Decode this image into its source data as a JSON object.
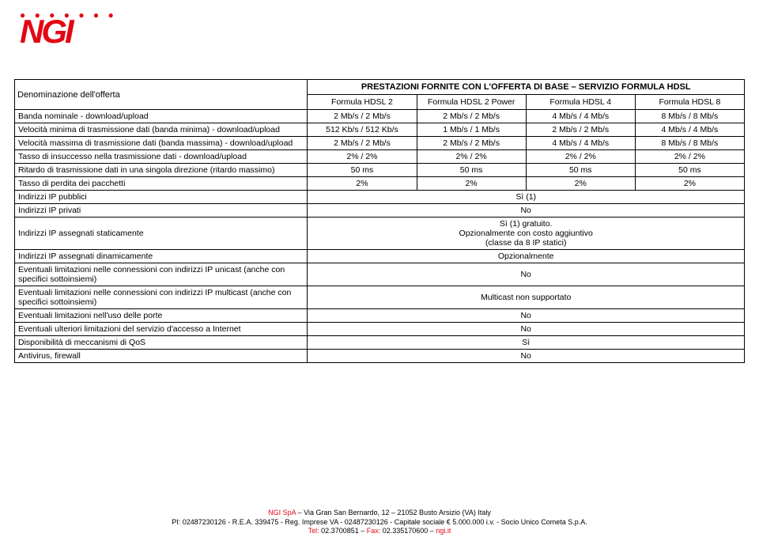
{
  "logo": {
    "dots": "● ● ● ● ● ● ●",
    "text": "NGI"
  },
  "table": {
    "title": "PRESTAZIONI FORNITE CON L'OFFERTA DI BASE – SERVIZIO FORMULA HDSL",
    "headers": [
      "Formula HDSL 2",
      "Formula HDSL 2 Power",
      "Formula HDSL 4",
      "Formula HDSL 8"
    ],
    "rows": [
      {
        "label": "Denominazione dell'offerta",
        "cells": [
          "Formula HDSL 2",
          "Formula HDSL 2 Power",
          "Formula HDSL 4",
          "Formula HDSL 8"
        ]
      },
      {
        "label": "Banda nominale - download/upload",
        "cells": [
          "2 Mb/s / 2 Mb/s",
          "2 Mb/s / 2 Mb/s",
          "4 Mb/s / 4 Mb/s",
          "8 Mb/s / 8 Mb/s"
        ]
      },
      {
        "label": "Velocità minima di trasmissione dati (banda minima) - download/upload",
        "cells": [
          "512 Kb/s / 512 Kb/s",
          "1 Mb/s / 1 Mb/s",
          "2 Mb/s / 2 Mb/s",
          "4 Mb/s / 4 Mb/s"
        ]
      },
      {
        "label": "Velocità massima di trasmissione dati (banda massima) - download/upload",
        "cells": [
          "2 Mb/s / 2 Mb/s",
          "2 Mb/s / 2 Mb/s",
          "4 Mb/s / 4 Mb/s",
          "8 Mb/s / 8 Mb/s"
        ]
      },
      {
        "label": "Tasso di insuccesso nella trasmissione dati - download/upload",
        "cells": [
          "2% / 2%",
          "2% / 2%",
          "2% / 2%",
          "2% / 2%"
        ]
      },
      {
        "label": "Ritardo di trasmissione dati in una singola direzione (ritardo massimo)",
        "cells": [
          "50 ms",
          "50 ms",
          "50 ms",
          "50 ms"
        ]
      },
      {
        "label": "Tasso di perdita dei pacchetti",
        "cells": [
          "2%",
          "2%",
          "2%",
          "2%"
        ]
      }
    ],
    "spanRows": [
      {
        "label": "Indirizzi IP pubblici",
        "value": "Sì (1)"
      },
      {
        "label": "Indirizzi IP privati",
        "value": "No"
      },
      {
        "label": "Indirizzi IP assegnati staticamente",
        "value": "Sì (1) gratuito.\nOpzionalmente con costo aggiuntivo\n(classe da 8 IP statici)"
      },
      {
        "label": "Indirizzi IP assegnati dinamicamente",
        "value": "Opzionalmente"
      },
      {
        "label": "Eventuali limitazioni nelle connessioni con indirizzi IP unicast (anche con specifici sottoinsiemi)",
        "value": "No"
      },
      {
        "label": "Eventuali limitazioni nelle connessioni con indirizzi IP multicast (anche con specifici sottoinsiemi)",
        "value": "Multicast non supportato"
      },
      {
        "label": "Eventuali limitazioni nell'uso delle porte",
        "value": "No"
      },
      {
        "label": "Eventuali ulteriori limitazioni del servizio d'accesso a Internet",
        "value": "No"
      },
      {
        "label": "Disponibilità di meccanismi di QoS",
        "value": "Sì"
      },
      {
        "label": "Antivirus, firewall",
        "value": "No"
      }
    ]
  },
  "footer": {
    "line1a": "NGI SpA",
    "line1b": " – Via Gran San Bernardo, 12 – 21052 Busto Arsizio (VA) Italy",
    "line2": "PI: 02487230126 - R.E.A. 339475 - Reg. Imprese VA - 02487230126 - Capitale sociale € 5.000.000 i.v. - Socio Unico Cometa S.p.A.",
    "line3a": "Tel:",
    "line3b": " 02.3700851 – ",
    "line3c": "Fax:",
    "line3d": " 02.335170600 – ",
    "line3e": "ngi.it"
  }
}
